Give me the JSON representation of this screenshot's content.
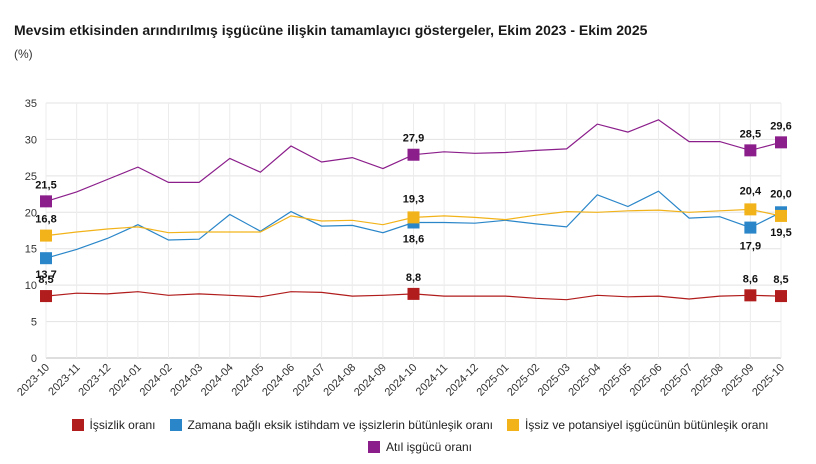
{
  "header": {
    "title": "Mevsim etkisinden arındırılmış işgücüne ilişkin tamamlayıcı göstergeler, Ekim 2023 - Ekim 2025",
    "unit": "(%)"
  },
  "chart_data": {
    "type": "line",
    "title": "Mevsim etkisinden arındırılmış işgücüne ilişkin tamamlayıcı göstergeler, Ekim 2023 - Ekim 2025",
    "ylabel": "(%)",
    "xlabel": "",
    "ylim": [
      0,
      35
    ],
    "yticks": [
      0,
      5,
      10,
      15,
      20,
      25,
      30,
      35
    ],
    "grid": true,
    "legend_position": "bottom",
    "categories": [
      "2023-10",
      "2023-11",
      "2023-12",
      "2024-01",
      "2024-02",
      "2024-03",
      "2024-04",
      "2024-05",
      "2024-06",
      "2024-07",
      "2024-08",
      "2024-09",
      "2024-10",
      "2024-11",
      "2024-12",
      "2025-01",
      "2025-02",
      "2025-03",
      "2025-04",
      "2025-05",
      "2025-06",
      "2025-07",
      "2025-08",
      "2025-09",
      "2025-10"
    ],
    "series": [
      {
        "name": "İşsizlik oranı",
        "color": "#b11c1c",
        "values": [
          8.5,
          8.9,
          8.8,
          9.1,
          8.6,
          8.8,
          8.6,
          8.4,
          9.1,
          9.0,
          8.5,
          8.6,
          8.8,
          8.5,
          8.5,
          8.5,
          8.2,
          8.0,
          8.6,
          8.4,
          8.5,
          8.1,
          8.5,
          8.6,
          8.5
        ],
        "labels": {
          "0": "8,5",
          "12": "8,8",
          "23": "8,6",
          "24": "8,5"
        }
      },
      {
        "name": "Zamana bağlı eksik istihdam ve işsizlerin bütünleşik oranı",
        "color": "#2a86c9",
        "values": [
          13.7,
          14.9,
          16.4,
          18.3,
          16.2,
          16.3,
          19.7,
          17.4,
          20.1,
          18.1,
          18.2,
          17.2,
          18.6,
          18.6,
          18.5,
          18.9,
          18.4,
          18.0,
          22.4,
          20.8,
          22.9,
          19.2,
          19.4,
          17.9,
          20.0
        ],
        "labels": {
          "0": "13,7",
          "12": "18,6",
          "23": "17,9",
          "24": "20,0"
        }
      },
      {
        "name": "İşsiz ve potansiyel işgücünün bütünleşik oranı",
        "color": "#f2b31a",
        "values": [
          16.8,
          17.3,
          17.7,
          18.0,
          17.2,
          17.3,
          17.3,
          17.3,
          19.5,
          18.8,
          18.9,
          18.3,
          19.3,
          19.5,
          19.3,
          19.0,
          19.6,
          20.1,
          20.0,
          20.2,
          20.3,
          20.0,
          20.2,
          20.4,
          19.5
        ],
        "labels": {
          "0": "16,8",
          "12": "19,3",
          "23": "20,4",
          "24": "19,5"
        }
      },
      {
        "name": "Atıl işgücü oranı",
        "color": "#8b1e8b",
        "values": [
          21.5,
          22.8,
          24.5,
          26.2,
          24.1,
          24.1,
          27.4,
          25.5,
          29.1,
          26.9,
          27.5,
          26.0,
          27.9,
          28.3,
          28.1,
          28.2,
          28.5,
          28.7,
          32.1,
          31.0,
          32.7,
          29.7,
          29.7,
          28.5,
          29.6
        ],
        "labels": {
          "0": "21,5",
          "12": "27,9",
          "23": "28,5",
          "24": "29,6"
        }
      }
    ]
  }
}
